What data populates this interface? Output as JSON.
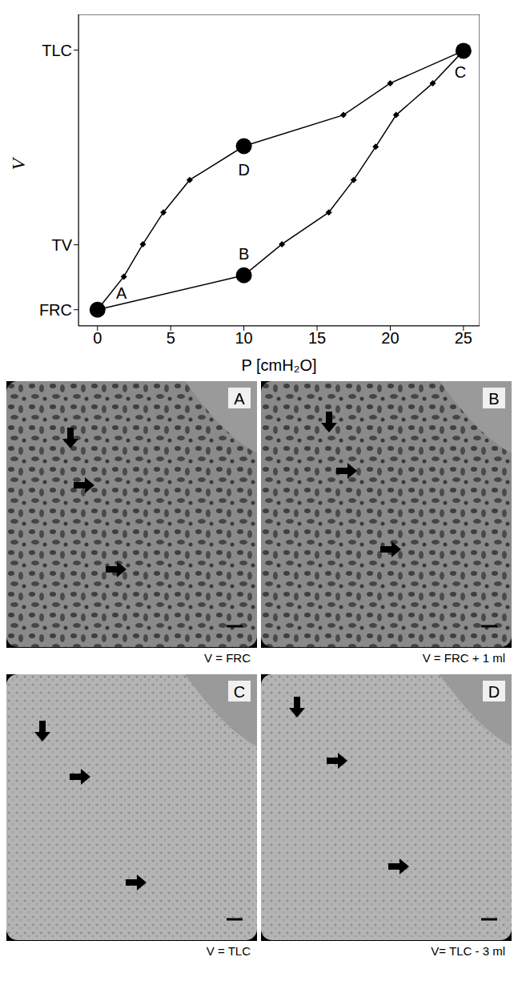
{
  "chart_data": {
    "type": "line",
    "xlabel": "P [cmH₂O]",
    "ylabel": "V",
    "xlim": [
      -1.3,
      26.1
    ],
    "ylim": [
      -0.25,
      4.55
    ],
    "xticks": [
      0,
      5,
      10,
      15,
      20,
      25
    ],
    "yticks": [
      {
        "value": 0,
        "label": "FRC"
      },
      {
        "value": 1,
        "label": "TV"
      },
      {
        "value": 4,
        "label": "TLC"
      }
    ],
    "series": [
      {
        "color": "#000000",
        "marker": "diamond",
        "x": [
          0,
          10.0,
          12.6,
          15.8,
          17.5,
          19.0,
          20.4,
          22.9,
          25.0
        ],
        "values": [
          0,
          0.53,
          1.01,
          1.5,
          2.0,
          2.51,
          3.0,
          3.49,
          3.99
        ]
      },
      {
        "color": "#000000",
        "marker": "diamond",
        "x": [
          25.0,
          20.0,
          16.8,
          10.0,
          6.3,
          4.5,
          3.1,
          1.8,
          0
        ],
        "values": [
          3.99,
          3.49,
          3.0,
          2.52,
          2.0,
          1.5,
          1.01,
          0.51,
          0
        ]
      }
    ],
    "annotations": [
      {
        "text": "A",
        "x": 0,
        "y": 0
      },
      {
        "text": "B",
        "x": 10.0,
        "y": 0.53
      },
      {
        "text": "C",
        "x": 25.0,
        "y": 3.99
      },
      {
        "text": "D",
        "x": 10.0,
        "y": 2.52
      }
    ]
  },
  "panels": [
    {
      "label": "A",
      "caption": "V = FRC"
    },
    {
      "label": "B",
      "caption": "V = FRC + 1 ml"
    },
    {
      "label": "C",
      "caption": "V = TLC"
    },
    {
      "label": "D",
      "caption": "V= TLC - 3 ml"
    }
  ]
}
